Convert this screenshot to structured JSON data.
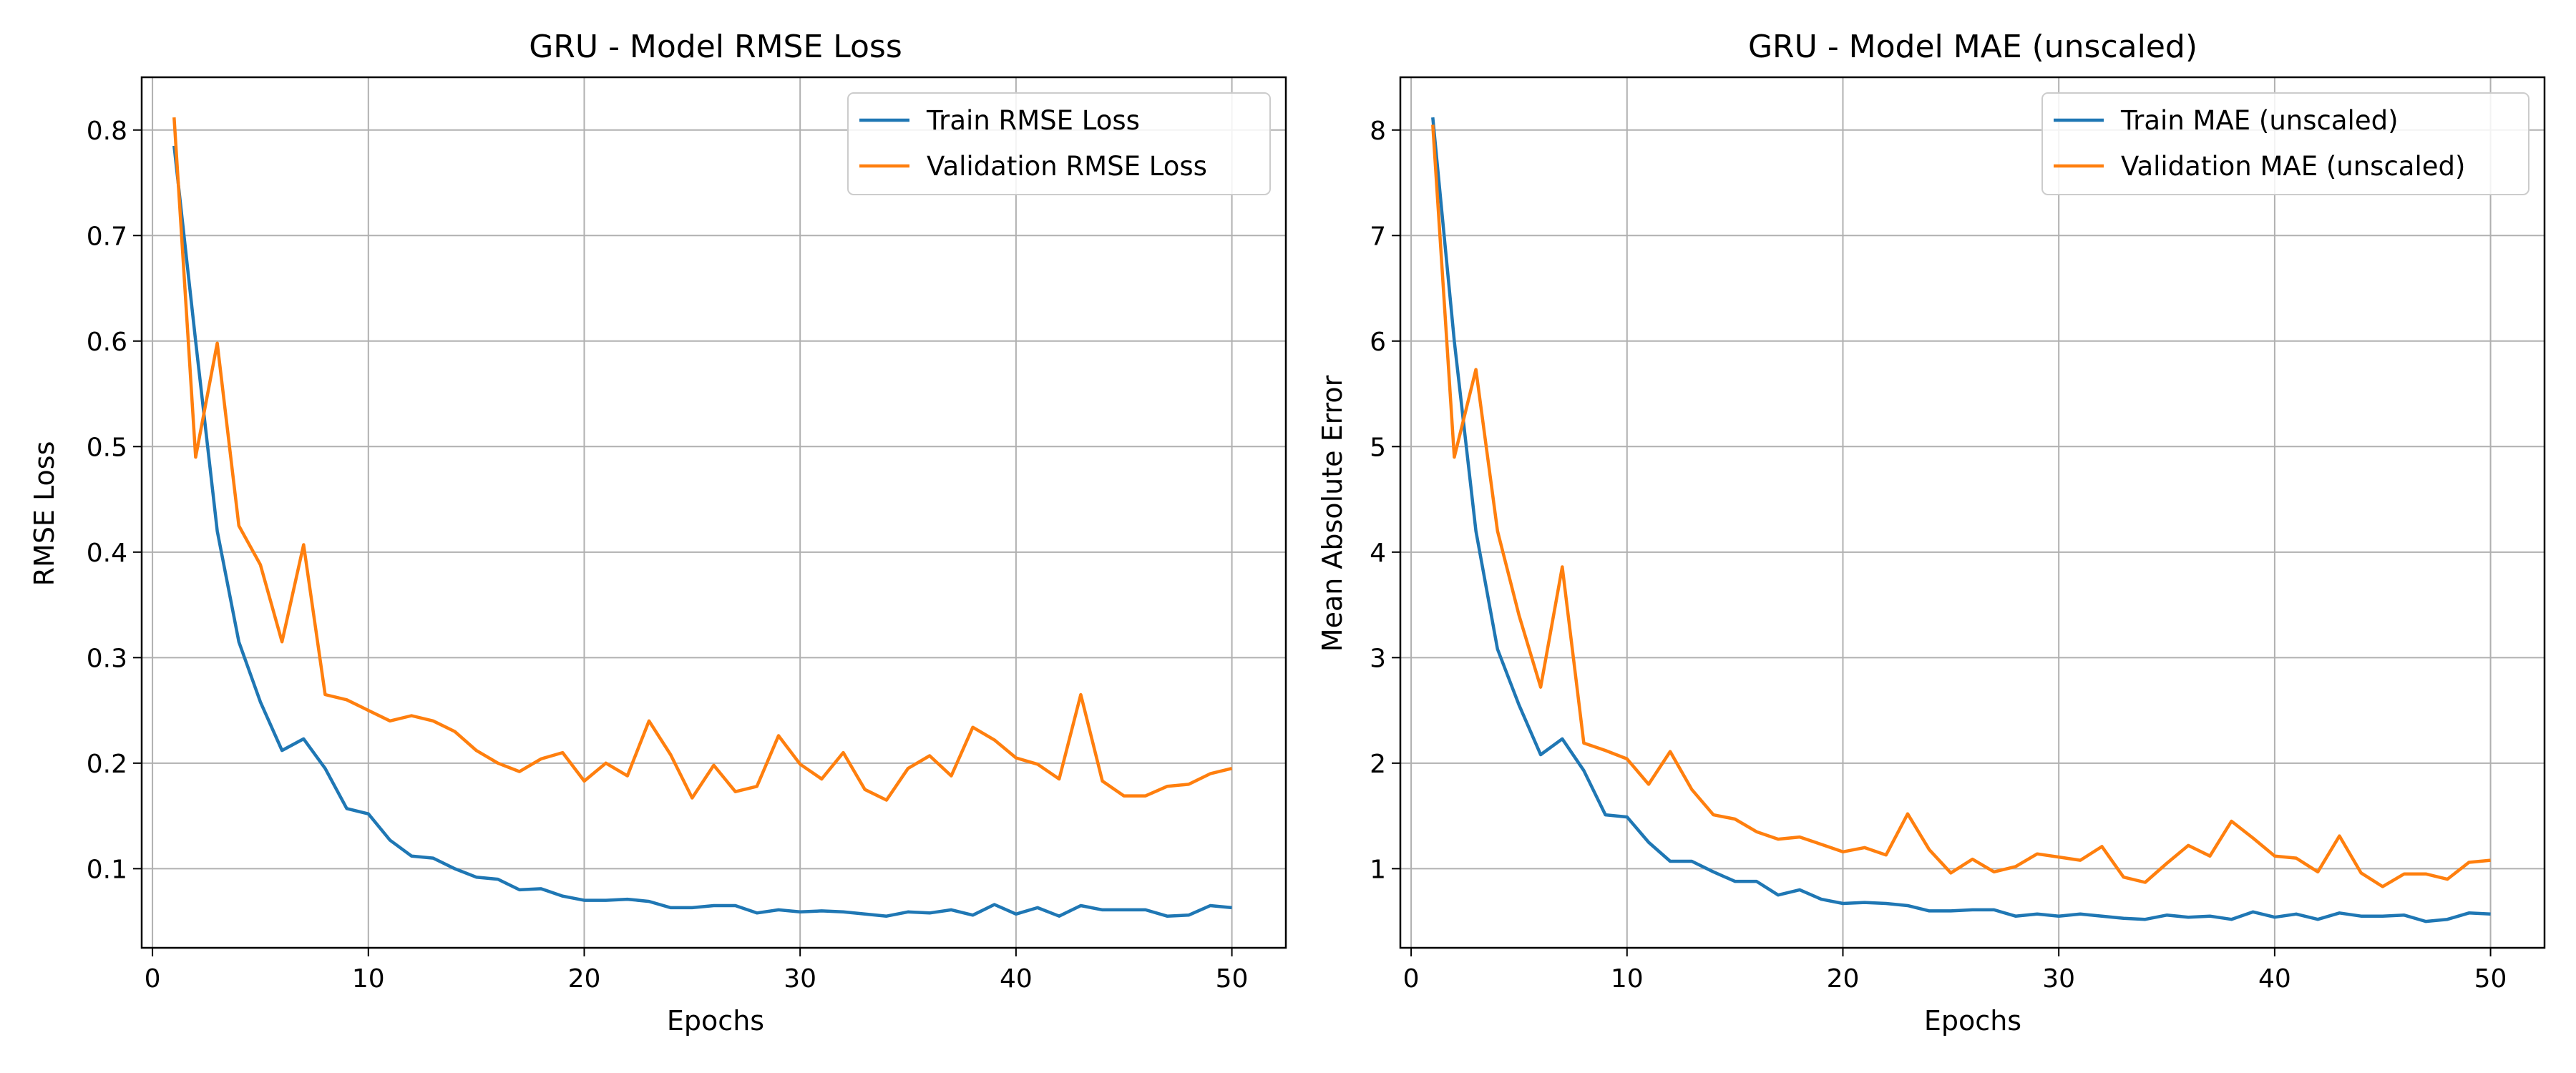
{
  "chart_data": [
    {
      "type": "line",
      "title": "GRU - Model RMSE Loss",
      "xlabel": "Epochs",
      "ylabel": "RMSE Loss",
      "xlim": [
        -0.5,
        52.5
      ],
      "ylim": [
        0.025,
        0.85
      ],
      "xticks": [
        0,
        10,
        20,
        30,
        40,
        50
      ],
      "yticks": [
        0.1,
        0.2,
        0.3,
        0.4,
        0.5,
        0.6,
        0.7,
        0.8
      ],
      "ytick_labels": [
        "0.1",
        "0.2",
        "0.3",
        "0.4",
        "0.5",
        "0.6",
        "0.7",
        "0.8"
      ],
      "grid": true,
      "legend": "top-right",
      "x": [
        1,
        2,
        3,
        4,
        5,
        6,
        7,
        8,
        9,
        10,
        11,
        12,
        13,
        14,
        15,
        16,
        17,
        18,
        19,
        20,
        21,
        22,
        23,
        24,
        25,
        26,
        27,
        28,
        29,
        30,
        31,
        32,
        33,
        34,
        35,
        36,
        37,
        38,
        39,
        40,
        41,
        42,
        43,
        44,
        45,
        46,
        47,
        48,
        49,
        50
      ],
      "series": [
        {
          "name": "Train RMSE Loss",
          "color": "#1f77b4",
          "values": [
            0.785,
            0.6,
            0.42,
            0.315,
            0.258,
            0.212,
            0.223,
            0.195,
            0.157,
            0.152,
            0.127,
            0.112,
            0.11,
            0.1,
            0.092,
            0.09,
            0.08,
            0.081,
            0.074,
            0.07,
            0.07,
            0.071,
            0.069,
            0.063,
            0.063,
            0.065,
            0.065,
            0.058,
            0.061,
            0.059,
            0.06,
            0.059,
            0.057,
            0.055,
            0.059,
            0.058,
            0.061,
            0.056,
            0.066,
            0.057,
            0.063,
            0.055,
            0.065,
            0.061,
            0.061,
            0.061,
            0.055,
            0.056,
            0.065,
            0.063
          ]
        },
        {
          "name": "Validation RMSE Loss",
          "color": "#ff7f0e",
          "values": [
            0.812,
            0.49,
            0.598,
            0.425,
            0.388,
            0.315,
            0.407,
            0.265,
            0.26,
            0.25,
            0.24,
            0.245,
            0.24,
            0.23,
            0.212,
            0.2,
            0.192,
            0.204,
            0.21,
            0.183,
            0.2,
            0.188,
            0.24,
            0.208,
            0.167,
            0.198,
            0.173,
            0.178,
            0.226,
            0.199,
            0.185,
            0.21,
            0.175,
            0.165,
            0.195,
            0.207,
            0.188,
            0.234,
            0.222,
            0.205,
            0.199,
            0.185,
            0.265,
            0.183,
            0.169,
            0.169,
            0.178,
            0.18,
            0.19,
            0.195
          ]
        }
      ]
    },
    {
      "type": "line",
      "title": "GRU - Model MAE (unscaled)",
      "xlabel": "Epochs",
      "ylabel": "Mean Absolute Error",
      "xlim": [
        -0.5,
        52.5
      ],
      "ylim": [
        0.25,
        8.5
      ],
      "xticks": [
        0,
        10,
        20,
        30,
        40,
        50
      ],
      "yticks": [
        1,
        2,
        3,
        4,
        5,
        6,
        7,
        8
      ],
      "ytick_labels": [
        "1",
        "2",
        "3",
        "4",
        "5",
        "6",
        "7",
        "8"
      ],
      "grid": true,
      "legend": "top-right",
      "x": [
        1,
        2,
        3,
        4,
        5,
        6,
        7,
        8,
        9,
        10,
        11,
        12,
        13,
        14,
        15,
        16,
        17,
        18,
        19,
        20,
        21,
        22,
        23,
        24,
        25,
        26,
        27,
        28,
        29,
        30,
        31,
        32,
        33,
        34,
        35,
        36,
        37,
        38,
        39,
        40,
        41,
        42,
        43,
        44,
        45,
        46,
        47,
        48,
        49,
        50
      ],
      "series": [
        {
          "name": "Train MAE (unscaled)",
          "color": "#1f77b4",
          "values": [
            8.12,
            6.0,
            4.2,
            3.08,
            2.55,
            2.08,
            2.23,
            1.93,
            1.51,
            1.49,
            1.25,
            1.07,
            1.07,
            0.97,
            0.88,
            0.88,
            0.75,
            0.8,
            0.71,
            0.67,
            0.68,
            0.67,
            0.65,
            0.6,
            0.6,
            0.61,
            0.61,
            0.55,
            0.57,
            0.55,
            0.57,
            0.55,
            0.53,
            0.52,
            0.56,
            0.54,
            0.55,
            0.52,
            0.59,
            0.54,
            0.57,
            0.52,
            0.58,
            0.55,
            0.55,
            0.56,
            0.5,
            0.52,
            0.58,
            0.57
          ]
        },
        {
          "name": "Validation MAE (unscaled)",
          "color": "#ff7f0e",
          "values": [
            8.05,
            4.9,
            5.73,
            4.2,
            3.4,
            2.72,
            3.86,
            2.19,
            2.12,
            2.04,
            1.8,
            2.11,
            1.75,
            1.51,
            1.47,
            1.35,
            1.28,
            1.3,
            1.23,
            1.16,
            1.2,
            1.13,
            1.52,
            1.18,
            0.96,
            1.09,
            0.97,
            1.02,
            1.14,
            1.11,
            1.08,
            1.21,
            0.92,
            0.87,
            1.05,
            1.22,
            1.12,
            1.45,
            1.29,
            1.12,
            1.1,
            0.97,
            1.31,
            0.96,
            0.83,
            0.95,
            0.95,
            0.9,
            1.06,
            1.08
          ]
        }
      ]
    }
  ]
}
